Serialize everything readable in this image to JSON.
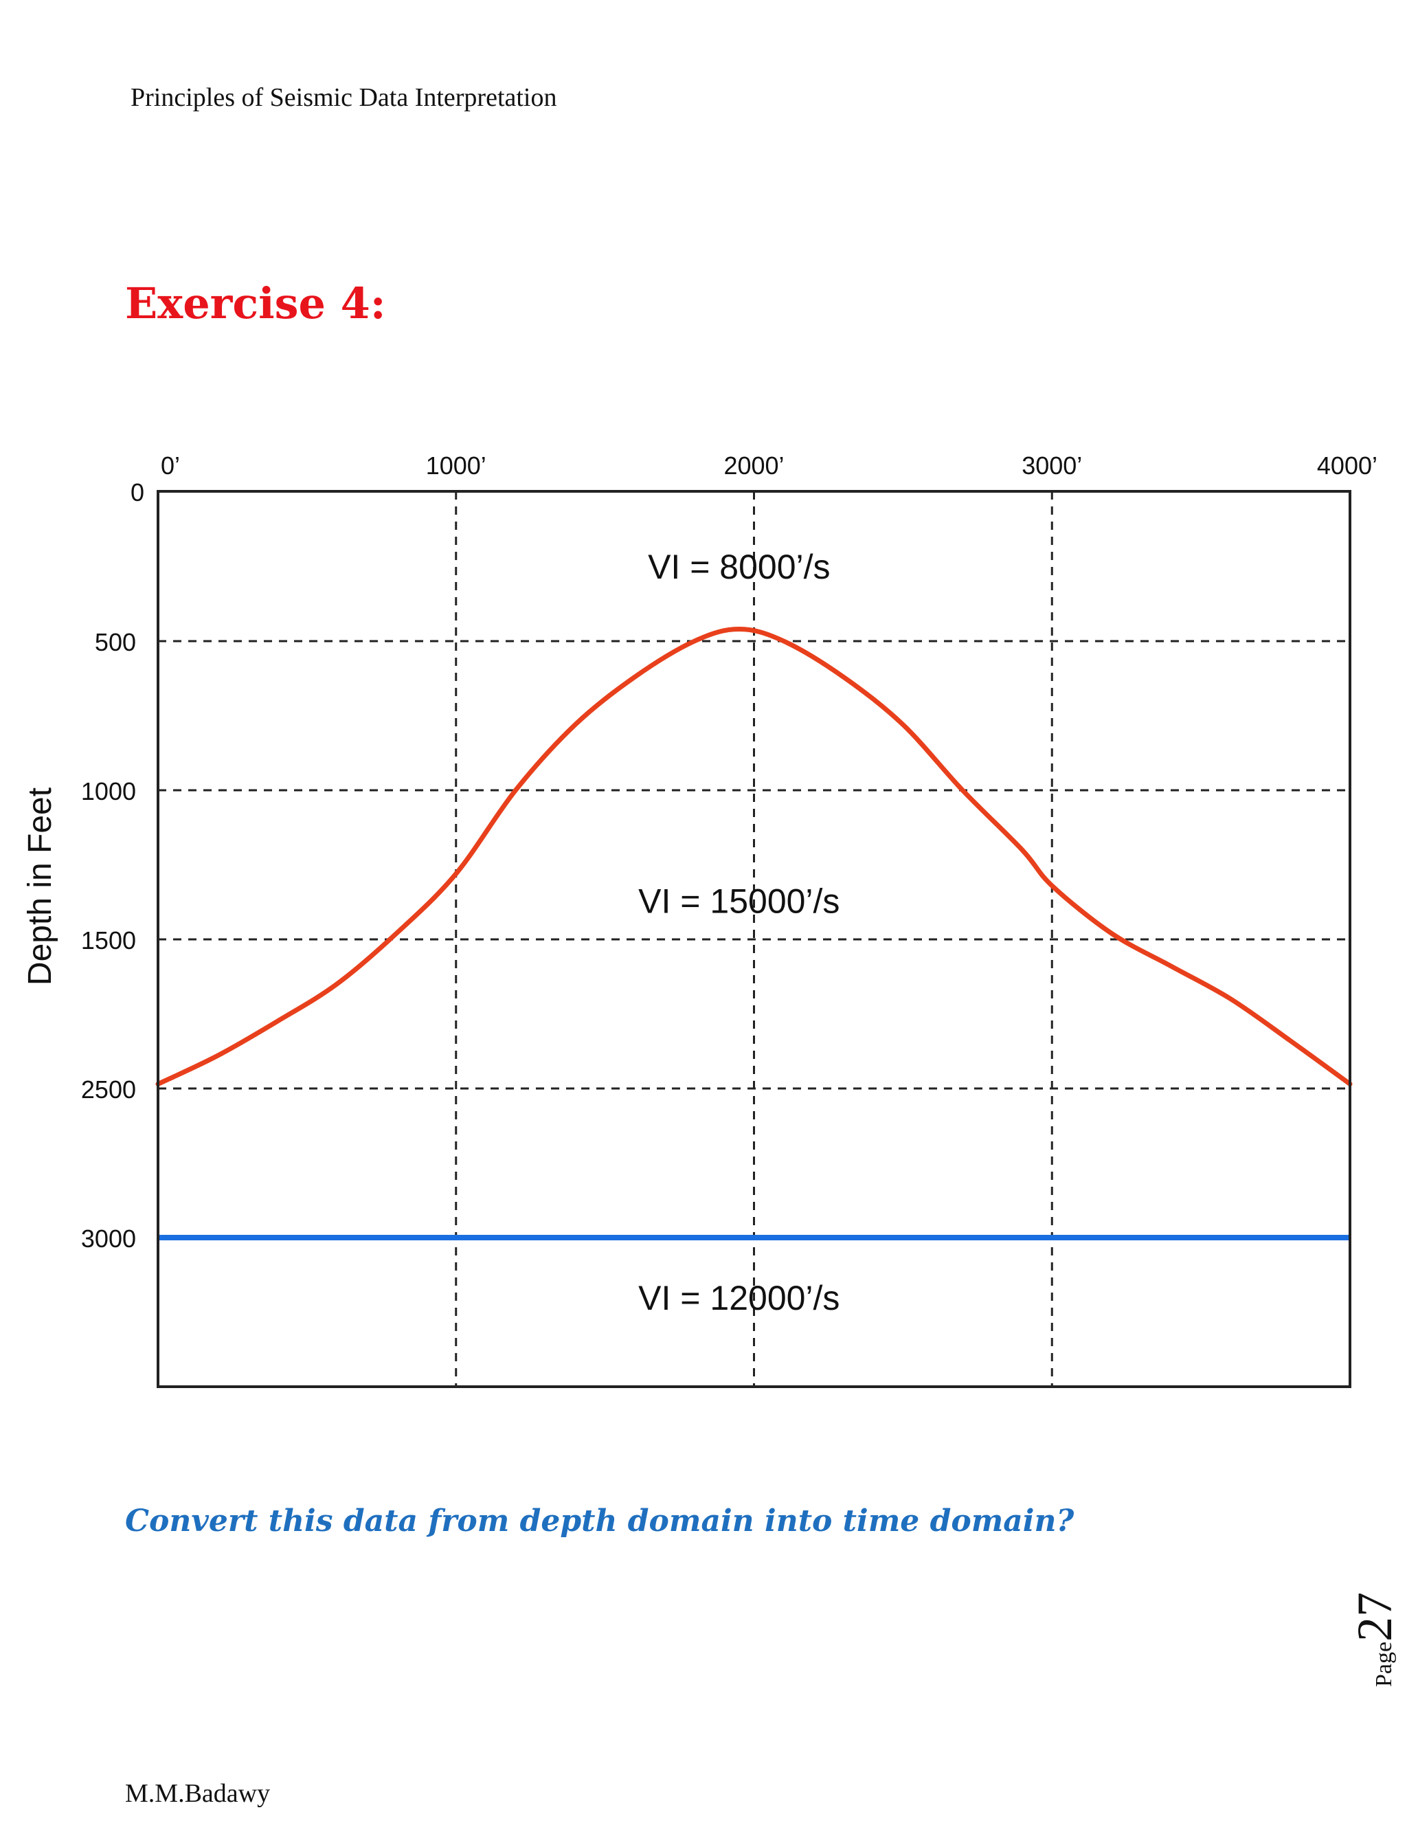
{
  "header": {
    "title": "Principles of Seismic Data Interpretation"
  },
  "exercise": {
    "title": "Exercise 4:"
  },
  "question": {
    "text": "Convert this data from depth domain into time domain?"
  },
  "footer": {
    "author": "M.M.Badawy"
  },
  "page": {
    "label": "Page",
    "number": "27"
  },
  "colors": {
    "exercise_title": "#e8141c",
    "question": "#1f6fbf",
    "curve": "#e8401c",
    "flat_horizon": "#1a6fe0"
  },
  "chart_data": {
    "type": "line",
    "ylabel": "Depth in Feet",
    "x_ticks": [
      "0’",
      "1000’",
      "2000’",
      "3000’",
      "4000’"
    ],
    "y_ticks": [
      "0",
      "500",
      "1000",
      "1500",
      "2500",
      "3000"
    ],
    "xlim": [
      0,
      4000
    ],
    "grid": true,
    "y_reversed": true,
    "series": [
      {
        "x": [
          0,
          200,
          400,
          600,
          800,
          1000,
          1200,
          1400,
          1600,
          1800,
          1950,
          2100,
          2300,
          2500,
          2700,
          2900,
          3000,
          3200,
          3400,
          3600,
          3800,
          4000
        ],
        "y": [
          2470,
          2280,
          2050,
          1800,
          1480,
          1280,
          1000,
          780,
          620,
          500,
          460,
          500,
          620,
          780,
          1000,
          1200,
          1320,
          1480,
          1680,
          1900,
          2180,
          2470
        ]
      },
      {
        "x": [
          0,
          4000
        ],
        "y": [
          3000,
          3000
        ]
      }
    ],
    "annotations": [
      {
        "text": "VI = 8000’/s",
        "x": 1950,
        "y": 250
      },
      {
        "text": "VI = 15000’/s",
        "x": 1950,
        "y": 1370
      },
      {
        "text": "VI = 12000’/s",
        "x": 1950,
        "y": 3200
      }
    ]
  }
}
